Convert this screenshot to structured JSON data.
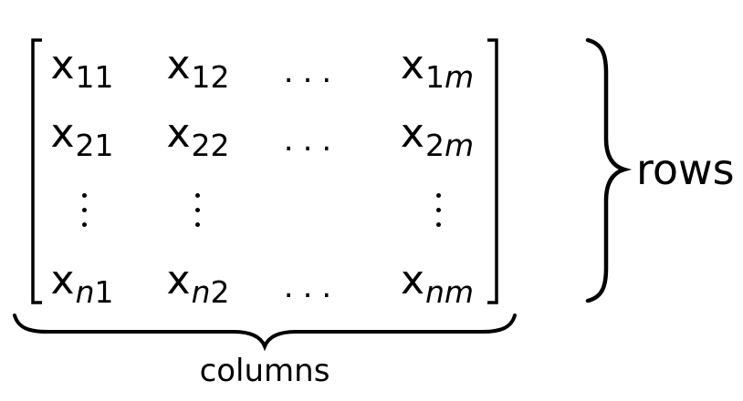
{
  "matrix": {
    "rows": [
      [
        {
          "base": "x",
          "sub": [
            "11"
          ]
        },
        {
          "base": "x",
          "sub": [
            "12"
          ]
        },
        {
          "dots": "..."
        },
        {
          "base": "x",
          "sub": [
            "1",
            "m"
          ]
        }
      ],
      [
        {
          "base": "x",
          "sub": [
            "21"
          ]
        },
        {
          "base": "x",
          "sub": [
            "22"
          ]
        },
        {
          "dots": "..."
        },
        {
          "base": "x",
          "sub": [
            "2",
            "m"
          ]
        }
      ],
      [
        {
          "vdots": true
        },
        {
          "vdots": true
        },
        {
          "empty": true
        },
        {
          "vdots": true
        }
      ],
      [
        {
          "base": "x",
          "sub": [
            "n",
            "1"
          ]
        },
        {
          "base": "x",
          "sub": [
            "n",
            "2"
          ]
        },
        {
          "dots": "..."
        },
        {
          "base": "x",
          "sub": [
            "n",
            "m"
          ]
        }
      ]
    ]
  },
  "labels": {
    "rows": "rows",
    "columns": "columns"
  }
}
